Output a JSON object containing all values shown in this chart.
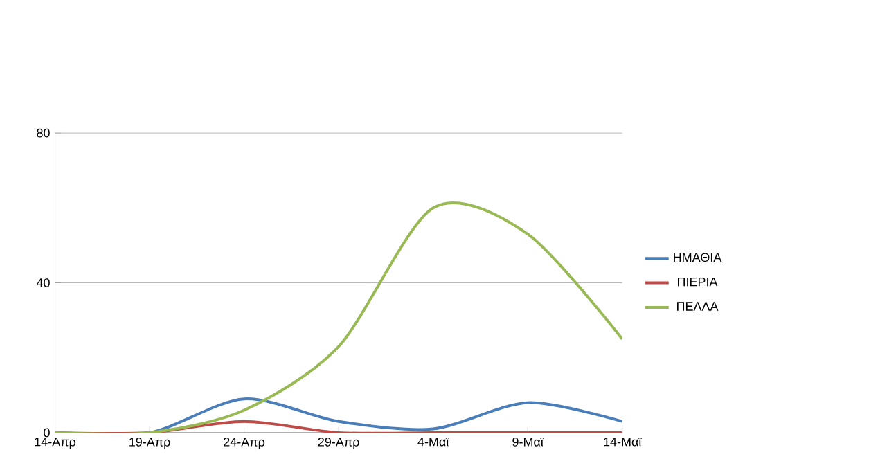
{
  "chart_data": {
    "type": "line",
    "categories": [
      "14-Απρ",
      "19-Απρ",
      "24-Απρ",
      "29-Απρ",
      "4-Μαϊ",
      "9-Μαϊ",
      "14-Μαϊ"
    ],
    "series": [
      {
        "name": "ΗΜΑΘΙΑ",
        "color": "#4a7ebb",
        "values": [
          0,
          0,
          9,
          3,
          1,
          8,
          3
        ]
      },
      {
        "name": "ΠΙΕΡΙΑ",
        "color": "#be4b48",
        "values": [
          0,
          0,
          3,
          0,
          0,
          0,
          0
        ]
      },
      {
        "name": "ΠΕΛΛΑ",
        "color": "#98b954",
        "values": [
          0,
          0,
          6,
          23,
          60,
          53,
          25
        ]
      }
    ],
    "ylim": [
      0,
      80
    ],
    "yticks": [
      0,
      40,
      80
    ],
    "grid": "y",
    "legend": "right",
    "marker": "none",
    "line_style": "solid"
  }
}
